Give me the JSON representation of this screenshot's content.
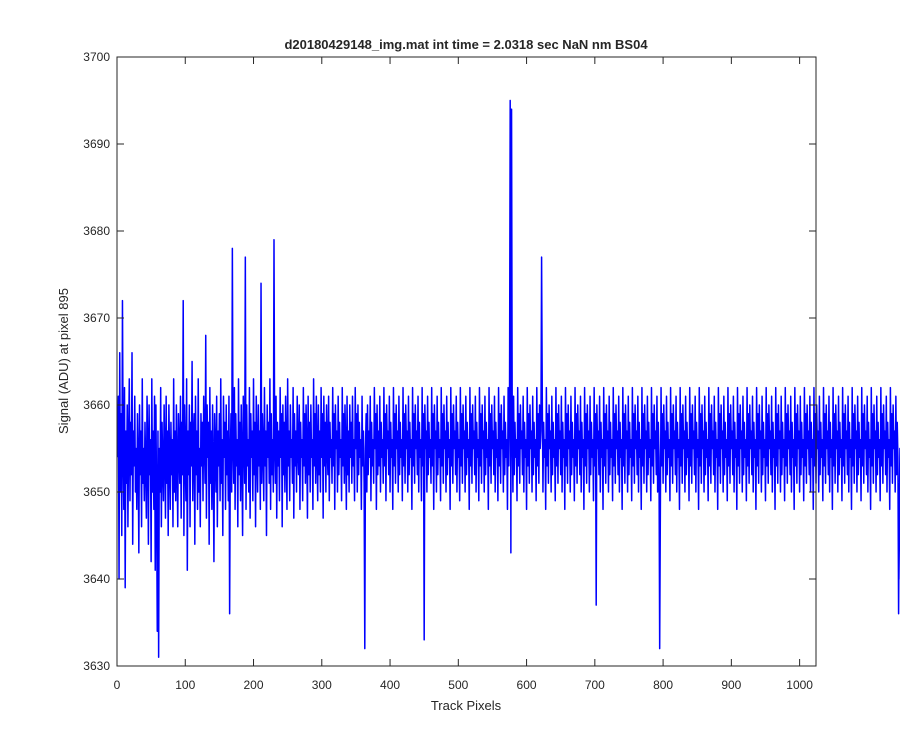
{
  "chart_data": {
    "type": "line",
    "title": "d20180429148_img.mat int time = 2.0318 sec  NaN nm BS04",
    "xlabel": "Track Pixels",
    "ylabel": "Signal (ADU) at pixel 895",
    "xlim": [
      0,
      1024
    ],
    "ylim": [
      3630,
      3700
    ],
    "xticks": [
      0,
      100,
      200,
      300,
      400,
      500,
      600,
      700,
      800,
      900,
      1000
    ],
    "yticks": [
      3630,
      3640,
      3650,
      3660,
      3670,
      3680,
      3690,
      3700
    ],
    "grid": false,
    "legend": "none",
    "line_color": "#0000ff",
    "series": [
      {
        "x_start": 1,
        "x_step": 1,
        "values": [
          3654,
          3661,
          3640,
          3666,
          3650,
          3659,
          3645,
          3672,
          3655,
          3648,
          3662,
          3639,
          3657,
          3651,
          3660,
          3646,
          3656,
          3663,
          3649,
          3658,
          3652,
          3666,
          3644,
          3657,
          3653,
          3661,
          3650,
          3655,
          3648,
          3659,
          3654,
          3643,
          3660,
          3652,
          3657,
          3646,
          3663,
          3651,
          3655,
          3649,
          3658,
          3653,
          3647,
          3661,
          3655,
          3644,
          3660,
          3652,
          3656,
          3642,
          3663,
          3650,
          3657,
          3648,
          3661,
          3641,
          3660,
          3649,
          3634,
          3657,
          3631,
          3655,
          3650,
          3662,
          3646,
          3658,
          3653,
          3649,
          3660,
          3655,
          3647,
          3661,
          3651,
          3657,
          3645,
          3660,
          3654,
          3648,
          3658,
          3652,
          3656,
          3646,
          3663,
          3650,
          3657,
          3649,
          3660,
          3653,
          3646,
          3659,
          3655,
          3651,
          3661,
          3647,
          3658,
          3652,
          3672,
          3645,
          3660,
          3654,
          3649,
          3663,
          3641,
          3657,
          3652,
          3660,
          3646,
          3658,
          3653,
          3665,
          3649,
          3656,
          3659,
          3644,
          3661,
          3652,
          3657,
          3648,
          3663,
          3650,
          3655,
          3646,
          3659,
          3653,
          3658,
          3649,
          3661,
          3656,
          3651,
          3668,
          3647,
          3660,
          3654,
          3658,
          3644,
          3662,
          3651,
          3657,
          3648,
          3660,
          3653,
          3642,
          3659,
          3655,
          3650,
          3661,
          3646,
          3657,
          3653,
          3659,
          3649,
          3663,
          3651,
          3656,
          3645,
          3661,
          3654,
          3658,
          3648,
          3660,
          3652,
          3657,
          3649,
          3661,
          3636,
          3654,
          3659,
          3650,
          3678,
          3655,
          3651,
          3662,
          3648,
          3659,
          3653,
          3656,
          3646,
          3663,
          3652,
          3658,
          3649,
          3660,
          3654,
          3645,
          3661,
          3657,
          3651,
          3677,
          3648,
          3660,
          3653,
          3656,
          3650,
          3662,
          3647,
          3659,
          3654,
          3657,
          3649,
          3663,
          3652,
          3658,
          3646,
          3661,
          3655,
          3650,
          3660,
          3653,
          3657,
          3648,
          3674,
          3651,
          3659,
          3655,
          3649,
          3662,
          3653,
          3657,
          3645,
          3660,
          3654,
          3658,
          3651,
          3663,
          3648,
          3659,
          3652,
          3656,
          3650,
          3679,
          3655,
          3651,
          3661,
          3647,
          3658,
          3653,
          3657,
          3649,
          3662,
          3654,
          3659,
          3646,
          3660,
          3652,
          3658,
          3650,
          3661,
          3655,
          3648,
          3663,
          3653,
          3657,
          3649,
          3660,
          3654,
          3656,
          3651,
          3662,
          3647,
          3659,
          3653,
          3657,
          3650,
          3661,
          3655,
          3652,
          3660,
          3648,
          3658,
          3654,
          3656,
          3649,
          3662,
          3653,
          3659,
          3651,
          3660,
          3655,
          3647,
          3661,
          3652,
          3658,
          3650,
          3660,
          3654,
          3656,
          3648,
          3663,
          3653,
          3659,
          3651,
          3661,
          3655,
          3649,
          3660,
          3652,
          3657,
          3650,
          3662,
          3654,
          3659,
          3647,
          3661,
          3653,
          3658,
          3650,
          3660,
          3655,
          3652,
          3661,
          3649,
          3658,
          3654,
          3656,
          3651,
          3662,
          3653,
          3659,
          3648,
          3660,
          3655,
          3657,
          3650,
          3661,
          3652,
          3658,
          3654,
          3656,
          3649,
          3662,
          3653,
          3659,
          3651,
          3660,
          3655,
          3648,
          3661,
          3652,
          3657,
          3650,
          3660,
          3654,
          3658,
          3651,
          3661,
          3653,
          3656,
          3649,
          3662,
          3655,
          3659,
          3650,
          3660,
          3652,
          3658,
          3654,
          3656,
          3648,
          3661,
          3653,
          3657,
          3651,
          3632,
          3655,
          3659,
          3650,
          3660,
          3652,
          3657,
          3654,
          3661,
          3649,
          3658,
          3653,
          3656,
          3651,
          3662,
          3655,
          3659,
          3648,
          3660,
          3652,
          3657,
          3653,
          3661,
          3650,
          3658,
          3654,
          3656,
          3651,
          3662,
          3653,
          3659,
          3649,
          3660,
          3655,
          3657,
          3652,
          3661,
          3650,
          3658,
          3654,
          3656,
          3648,
          3662,
          3653,
          3659,
          3651,
          3660,
          3655,
          3657,
          3650,
          3661,
          3652,
          3658,
          3654,
          3656,
          3649,
          3662,
          3653,
          3659,
          3651,
          3660,
          3655,
          3657,
          3650,
          3661,
          3652,
          3658,
          3654,
          3656,
          3648,
          3662,
          3653,
          3659,
          3651,
          3660,
          3655,
          3657,
          3652,
          3661,
          3650,
          3658,
          3654,
          3656,
          3649,
          3662,
          3653,
          3659,
          3633,
          3660,
          3655,
          3657,
          3650,
          3661,
          3652,
          3658,
          3654,
          3656,
          3651,
          3662,
          3653,
          3659,
          3648,
          3660,
          3655,
          3657,
          3650,
          3661,
          3652,
          3658,
          3654,
          3656,
          3649,
          3662,
          3653,
          3659,
          3651,
          3660,
          3655,
          3657,
          3650,
          3661,
          3652,
          3658,
          3654,
          3656,
          3648,
          3662,
          3653,
          3659,
          3651,
          3660,
          3655,
          3657,
          3652,
          3661,
          3650,
          3658,
          3654,
          3656,
          3649,
          3662,
          3653,
          3659,
          3651,
          3660,
          3655,
          3657,
          3650,
          3661,
          3652,
          3658,
          3654,
          3656,
          3648,
          3662,
          3653,
          3659,
          3651,
          3660,
          3655,
          3657,
          3652,
          3661,
          3650,
          3658,
          3654,
          3656,
          3649,
          3662,
          3653,
          3659,
          3651,
          3660,
          3655,
          3657,
          3650,
          3661,
          3652,
          3658,
          3654,
          3656,
          3648,
          3662,
          3653,
          3659,
          3651,
          3660,
          3655,
          3657,
          3652,
          3661,
          3650,
          3658,
          3654,
          3656,
          3649,
          3662,
          3653,
          3659,
          3651,
          3660,
          3655,
          3657,
          3650,
          3661,
          3652,
          3658,
          3654,
          3656,
          3648,
          3662,
          3653,
          3659,
          3695,
          3643,
          3694,
          3657,
          3650,
          3661,
          3652,
          3658,
          3654,
          3656,
          3649,
          3662,
          3653,
          3659,
          3651,
          3660,
          3655,
          3657,
          3652,
          3661,
          3650,
          3658,
          3654,
          3656,
          3648,
          3662,
          3653,
          3659,
          3651,
          3660,
          3655,
          3657,
          3650,
          3661,
          3652,
          3658,
          3654,
          3656,
          3649,
          3662,
          3653,
          3659,
          3651,
          3660,
          3655,
          3657,
          3677,
          3661,
          3650,
          3658,
          3654,
          3656,
          3648,
          3662,
          3653,
          3659,
          3651,
          3660,
          3655,
          3657,
          3650,
          3661,
          3652,
          3658,
          3654,
          3656,
          3649,
          3662,
          3653,
          3659,
          3651,
          3660,
          3655,
          3657,
          3652,
          3661,
          3650,
          3658,
          3654,
          3656,
          3648,
          3662,
          3653,
          3659,
          3651,
          3660,
          3655,
          3657,
          3650,
          3661,
          3652,
          3658,
          3654,
          3656,
          3649,
          3662,
          3653,
          3659,
          3651,
          3660,
          3655,
          3657,
          3652,
          3661,
          3650,
          3658,
          3654,
          3656,
          3648,
          3662,
          3653,
          3659,
          3651,
          3660,
          3655,
          3657,
          3650,
          3661,
          3652,
          3658,
          3654,
          3656,
          3649,
          3662,
          3653,
          3659,
          3637,
          3660,
          3655,
          3657,
          3652,
          3661,
          3650,
          3658,
          3654,
          3656,
          3648,
          3662,
          3653,
          3659,
          3651,
          3660,
          3655,
          3657,
          3650,
          3661,
          3652,
          3658,
          3654,
          3656,
          3649,
          3662,
          3653,
          3659,
          3651,
          3660,
          3655,
          3657,
          3652,
          3661,
          3650,
          3658,
          3654,
          3656,
          3648,
          3662,
          3653,
          3659,
          3651,
          3660,
          3655,
          3657,
          3650,
          3661,
          3652,
          3658,
          3654,
          3656,
          3649,
          3662,
          3653,
          3659,
          3651,
          3660,
          3655,
          3657,
          3652,
          3661,
          3650,
          3658,
          3654,
          3656,
          3648,
          3662,
          3653,
          3659,
          3651,
          3660,
          3655,
          3657,
          3650,
          3661,
          3652,
          3658,
          3654,
          3656,
          3649,
          3662,
          3653,
          3659,
          3651,
          3660,
          3655,
          3657,
          3652,
          3661,
          3650,
          3658,
          3654,
          3632,
          3648,
          3662,
          3653,
          3659,
          3651,
          3660,
          3655,
          3657,
          3650,
          3661,
          3652,
          3658,
          3654,
          3656,
          3649,
          3662,
          3653,
          3659,
          3651,
          3660,
          3655,
          3657,
          3652,
          3661,
          3650,
          3658,
          3654,
          3656,
          3648,
          3662,
          3653,
          3659,
          3651,
          3660,
          3655,
          3657,
          3650,
          3661,
          3652,
          3658,
          3654,
          3656,
          3649,
          3662,
          3653,
          3659,
          3651,
          3660,
          3655,
          3657,
          3652,
          3661,
          3650,
          3658,
          3654,
          3656,
          3648,
          3662,
          3653,
          3659,
          3651,
          3660,
          3655,
          3657,
          3650,
          3661,
          3652,
          3658,
          3654,
          3656,
          3649,
          3662,
          3653,
          3659,
          3651,
          3660,
          3655,
          3657,
          3652,
          3661,
          3650,
          3658,
          3654,
          3656,
          3648,
          3662,
          3653,
          3659,
          3651,
          3660,
          3655,
          3657,
          3650,
          3661,
          3652,
          3658,
          3654,
          3656,
          3649,
          3662,
          3653,
          3659,
          3651,
          3660,
          3655,
          3657,
          3652,
          3661,
          3650,
          3658,
          3654,
          3656,
          3648,
          3662,
          3653,
          3659,
          3651,
          3660,
          3655,
          3657,
          3650,
          3661,
          3652,
          3658,
          3654,
          3656,
          3649,
          3662,
          3653,
          3659,
          3651,
          3660,
          3655,
          3657,
          3652,
          3661,
          3650,
          3658,
          3654,
          3656,
          3648,
          3662,
          3653,
          3659,
          3651,
          3660,
          3655,
          3657,
          3650,
          3661,
          3652,
          3658,
          3654,
          3656,
          3649,
          3662,
          3653,
          3659,
          3651,
          3660,
          3655,
          3657,
          3652,
          3661,
          3650,
          3658,
          3654,
          3656,
          3648,
          3662,
          3653,
          3659,
          3651,
          3660,
          3655,
          3657,
          3650,
          3661,
          3652,
          3658,
          3654,
          3656,
          3649,
          3662,
          3653,
          3659,
          3651,
          3660,
          3655,
          3657,
          3652,
          3661,
          3650,
          3658,
          3654,
          3656,
          3648,
          3662,
          3653,
          3659,
          3651,
          3660,
          3655,
          3657,
          3650,
          3661,
          3652,
          3658,
          3654,
          3656,
          3649,
          3662,
          3653,
          3659,
          3651,
          3660,
          3655,
          3657,
          3652,
          3661,
          3650,
          3658,
          3654,
          3656,
          3648,
          3662,
          3653,
          3659,
          3651,
          3660,
          3655,
          3657,
          3650,
          3661,
          3652,
          3658,
          3654,
          3656,
          3649,
          3662,
          3653,
          3659,
          3651,
          3660,
          3655,
          3657,
          3652,
          3661,
          3650,
          3658,
          3654,
          3656,
          3648,
          3662,
          3653,
          3659,
          3651,
          3660,
          3655,
          3657,
          3650,
          3661,
          3652,
          3658,
          3654,
          3656,
          3649,
          3662,
          3653,
          3659,
          3651,
          3660,
          3655,
          3657,
          3652,
          3661,
          3650,
          3658,
          3654,
          3656,
          3648,
          3662,
          3653,
          3659,
          3651,
          3660,
          3655,
          3657,
          3650,
          3661,
          3652,
          3658,
          3654,
          3656,
          3649,
          3662,
          3653,
          3659,
          3651,
          3660,
          3655,
          3657,
          3652,
          3661,
          3650,
          3658,
          3654,
          3656,
          3648,
          3662,
          3653,
          3659,
          3651,
          3660,
          3655,
          3657,
          3650,
          3661,
          3652,
          3658,
          3654,
          3656,
          3649,
          3662,
          3653,
          3659,
          3651,
          3660,
          3655,
          3657,
          3652,
          3661,
          3650,
          3658,
          3654,
          3656,
          3648,
          3662,
          3653,
          3659,
          3651,
          3660,
          3655,
          3657,
          3650,
          3661,
          3652,
          3658,
          3654,
          3636,
          3649,
          3655,
          3640,
          3660
        ]
      }
    ]
  }
}
